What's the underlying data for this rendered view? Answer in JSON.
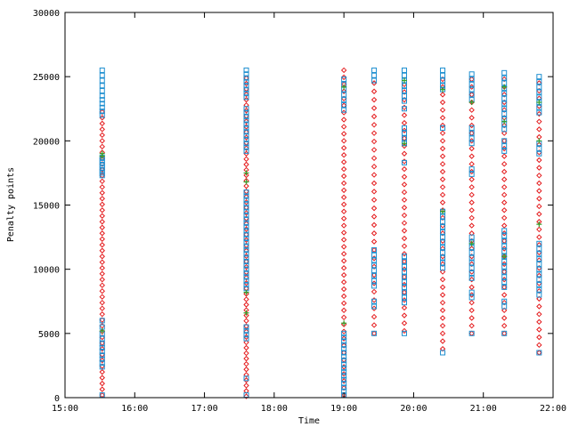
{
  "chart_data": {
    "type": "scatter",
    "title": "",
    "xlabel": "Time",
    "ylabel": "Penalty points",
    "xlim": [
      "15:00",
      "22:00"
    ],
    "ylim": [
      0,
      30000
    ],
    "x_ticks": [
      "15:00",
      "16:00",
      "17:00",
      "18:00",
      "19:00",
      "20:00",
      "21:00",
      "22:00"
    ],
    "y_ticks": [
      0,
      5000,
      10000,
      15000,
      20000,
      25000,
      30000
    ],
    "grid": false,
    "legend": "none",
    "series": [
      {
        "color": "#e41a1c",
        "marker": "diamond",
        "columns": [
          {
            "x": "15:32",
            "y_min": 200,
            "y_max": 22500,
            "step": 450
          },
          {
            "x": "17:36",
            "y_min": 100,
            "y_max": 25000,
            "step": 420
          },
          {
            "x": "19:00",
            "y_min": 200,
            "y_max": 25500,
            "step": 550
          },
          {
            "x": "19:26",
            "y_min": 5000,
            "y_max": 25000,
            "step": 650
          },
          {
            "x": "19:52",
            "y_min": 5200,
            "y_max": 24500,
            "step": 600
          },
          {
            "x": "20:25",
            "y_min": 3800,
            "y_max": 25000,
            "step": 600
          },
          {
            "x": "20:50",
            "y_min": 5000,
            "y_max": 24800,
            "step": 600
          },
          {
            "x": "21:18",
            "y_min": 5000,
            "y_max": 24800,
            "step": 600
          },
          {
            "x": "21:48",
            "y_min": 3500,
            "y_max": 24800,
            "step": 600
          }
        ]
      },
      {
        "color": "#1e8fd0",
        "marker": "square",
        "points": [
          {
            "x": "15:32",
            "y": [
              25500,
              25100,
              24700,
              24300,
              23900,
              23500,
              23200,
              22900,
              22600,
              22300,
              22000,
              18700,
              18500,
              18300,
              18100,
              17900,
              17700,
              17500,
              17300,
              6000,
              5500,
              5000,
              4600,
              4200,
              3900,
              3600,
              3300,
              3000,
              2700,
              2400,
              200
            ]
          },
          {
            "x": "17:36",
            "y": [
              25500,
              25200,
              24900,
              24600,
              24300,
              24000,
              23700,
              23400,
              22500,
              22200,
              21900,
              21600,
              21300,
              21000,
              20700,
              20400,
              20100,
              19800,
              19500,
              19200,
              16000,
              15700,
              15400,
              15100,
              14800,
              14500,
              14200,
              13900,
              13600,
              13300,
              13000,
              12700,
              12400,
              12100,
              11800,
              11500,
              11200,
              10900,
              10600,
              10300,
              10000,
              9700,
              9400,
              9100,
              8800,
              8500,
              5500,
              5200,
              4900,
              4600,
              1500,
              200
            ]
          },
          {
            "x": "19:00",
            "y": [
              24800,
              24400,
              24000,
              23600,
              23200,
              22800,
              22400,
              5000,
              4700,
              4400,
              4100,
              3800,
              3500,
              3200,
              2900,
              2600,
              2300,
              2000,
              1700,
              1400,
              1100,
              800,
              500,
              200
            ]
          },
          {
            "x": "19:26",
            "y": [
              25500,
              25100,
              24700,
              11500,
              11100,
              10700,
              10300,
              9900,
              9500,
              9100,
              8700,
              7500,
              7100,
              5000
            ]
          },
          {
            "x": "19:52",
            "y": [
              25500,
              25100,
              24700,
              24300,
              23900,
              23500,
              23100,
              22500,
              21000,
              20600,
              20200,
              19800,
              18300,
              11000,
              10600,
              10200,
              9800,
              9400,
              9000,
              8600,
              8200,
              7800,
              7400,
              5000
            ]
          },
          {
            "x": "20:25",
            "y": [
              25500,
              25100,
              24700,
              24300,
              24000,
              21000,
              14500,
              14100,
              13700,
              13300,
              12900,
              12500,
              12100,
              11700,
              11300,
              10900,
              10500,
              10100,
              3500
            ]
          },
          {
            "x": "20:50",
            "y": [
              25200,
              24800,
              24400,
              24000,
              23600,
              23200,
              21000,
              20600,
              20200,
              19800,
              17800,
              17400,
              12500,
              12100,
              11700,
              11300,
              10900,
              10500,
              10100,
              9700,
              9300,
              8200,
              7800,
              5000
            ]
          },
          {
            "x": "21:18",
            "y": [
              25300,
              24900,
              24500,
              24100,
              23700,
              23300,
              22900,
              22500,
              22100,
              21700,
              21300,
              20900,
              20000,
              19600,
              19200,
              13000,
              12600,
              12200,
              11800,
              11400,
              11000,
              10600,
              10200,
              9800,
              9400,
              9000,
              8600,
              7500,
              7100,
              5000
            ]
          },
          {
            "x": "21:48",
            "y": [
              25000,
              24600,
              24200,
              23800,
              23400,
              23000,
              22600,
              22200,
              19800,
              19400,
              19000,
              12000,
              11600,
              11200,
              10800,
              10400,
              10000,
              9600,
              9200,
              8800,
              8400,
              8000,
              3500
            ]
          }
        ]
      },
      {
        "color": "#33a02c",
        "marker": "plus",
        "points": [
          {
            "x": "15:32",
            "y": [
              19000,
              18800,
              5200
            ]
          },
          {
            "x": "17:36",
            "y": [
              17500,
              16800,
              8200,
              6600
            ]
          },
          {
            "x": "19:00",
            "y": [
              24200,
              5800
            ]
          },
          {
            "x": "19:52",
            "y": [
              24700,
              19800
            ]
          },
          {
            "x": "20:25",
            "y": [
              24000,
              14500
            ]
          },
          {
            "x": "20:50",
            "y": [
              23000,
              12000
            ]
          },
          {
            "x": "21:18",
            "y": [
              24200,
              21500,
              11000
            ]
          },
          {
            "x": "21:48",
            "y": [
              23000,
              20000,
              13500
            ]
          }
        ]
      }
    ]
  }
}
